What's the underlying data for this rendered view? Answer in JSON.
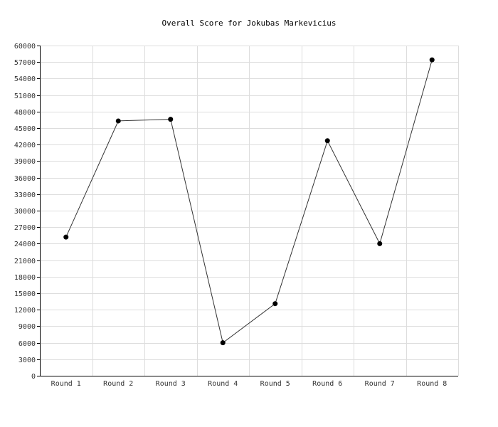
{
  "chart_data": {
    "type": "line",
    "title": "Overall Score for Jokubas Markevicius",
    "xlabel": "",
    "ylabel": "",
    "categories": [
      "Round 1",
      "Round 2",
      "Round 3",
      "Round 4",
      "Round 5",
      "Round 6",
      "Round 7",
      "Round 8"
    ],
    "series": [
      {
        "values": [
          25200,
          46300,
          46600,
          6000,
          13100,
          42700,
          24000,
          57400
        ]
      }
    ],
    "ylim": [
      0,
      60000
    ],
    "yticks": [
      0,
      3000,
      6000,
      9000,
      12000,
      15000,
      18000,
      21000,
      24000,
      27000,
      30000,
      33000,
      36000,
      39000,
      42000,
      45000,
      48000,
      51000,
      54000,
      57000,
      60000
    ],
    "grid": true,
    "legend": "none",
    "colors": {
      "line": "#333333",
      "marker": "#000000",
      "grid": "#dddddd",
      "axis": "#000000",
      "label": "#333333"
    }
  }
}
